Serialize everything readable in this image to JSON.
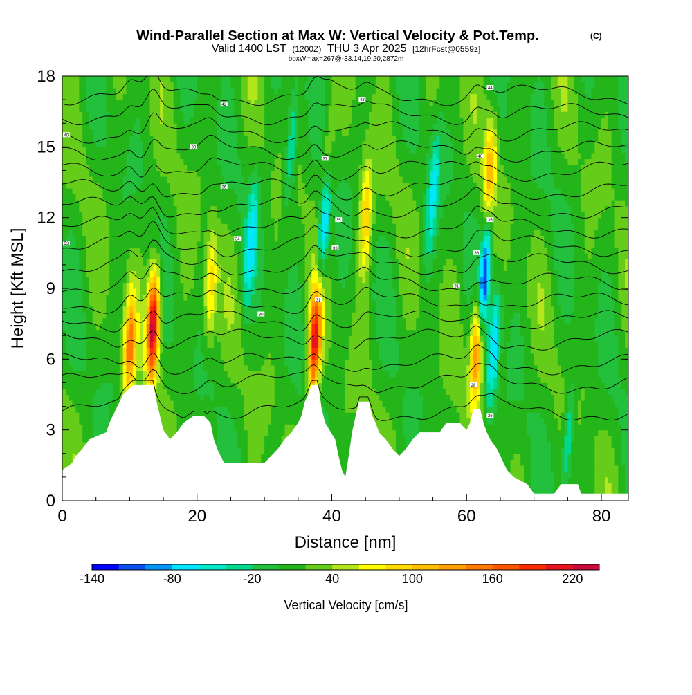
{
  "chart_data": {
    "type": "heatmap",
    "title": "Wind-Parallel Section at Max W: Vertical Velocity & Pot.Temp.",
    "title_mark": "(C)",
    "subtitle_parts": [
      "Valid 1400 LST",
      "(1200Z)",
      "THU 3 Apr 2025",
      "[12hrFcst@0559z]"
    ],
    "info_line": "boxWmax=267@-33.14,19.20,2872m",
    "xlabel": "Distance [nm]",
    "ylabel": "Height [Kft MSL]",
    "xlim": [
      0,
      84
    ],
    "ylim": [
      0,
      18
    ],
    "x_ticks": [
      0,
      20,
      40,
      60,
      80
    ],
    "x_tick_labels": [
      "0",
      "20",
      "40",
      "60",
      "80"
    ],
    "y_ticks": [
      0,
      3,
      6,
      9,
      12,
      15,
      18
    ],
    "y_tick_labels": [
      "0",
      "3",
      "6",
      "9",
      "12",
      "15",
      "18"
    ],
    "colorbar": {
      "label": "Vertical Velocity [cm/s]",
      "levels": [
        -140,
        -120,
        -100,
        -80,
        -60,
        -40,
        -20,
        0,
        20,
        40,
        60,
        80,
        100,
        120,
        140,
        160,
        180,
        200,
        220,
        240
      ],
      "colors": [
        "#0000ff",
        "#0a4ef0",
        "#0096f5",
        "#00e6ff",
        "#00e8c8",
        "#00d890",
        "#22c03c",
        "#23b51a",
        "#66cc1a",
        "#b4e61e",
        "#ffff00",
        "#ffdc00",
        "#ffbe00",
        "#ffa000",
        "#ff7800",
        "#ff5500",
        "#ff2d00",
        "#e6141e",
        "#c80a3c"
      ],
      "tick_values": [
        -140,
        -80,
        -20,
        40,
        100,
        160,
        220
      ],
      "tick_labels": [
        "-140",
        "-80",
        "-20",
        "40",
        "100",
        "160",
        "220"
      ]
    },
    "background_w": 12,
    "updrafts": [
      {
        "x": 10.0,
        "y": 6.5,
        "peak": 130
      },
      {
        "x": 13.5,
        "y": 7.5,
        "peak": 225
      },
      {
        "x": 37.5,
        "y": 6.8,
        "peak": 200
      },
      {
        "x": 61.5,
        "y": 6.5,
        "peak": 150
      },
      {
        "x": 22.0,
        "y": 9.0,
        "peak": 80
      },
      {
        "x": 39.5,
        "y": 14.0,
        "peak": 70
      },
      {
        "x": 45.0,
        "y": 12.0,
        "peak": 90
      },
      {
        "x": 63.5,
        "y": 14.0,
        "peak": 100
      }
    ],
    "downdrafts": [
      {
        "x": 39.0,
        "y": 12.0,
        "peak": -120
      },
      {
        "x": 62.7,
        "y": 9.5,
        "peak": -130
      },
      {
        "x": 64.0,
        "y": 6.5,
        "peak": -90
      },
      {
        "x": 28.0,
        "y": 11.0,
        "peak": -70
      },
      {
        "x": 55.0,
        "y": 13.0,
        "peak": -70
      },
      {
        "x": 34.0,
        "y": 15.0,
        "peak": -60
      },
      {
        "x": 75.0,
        "y": 2.5,
        "peak": -60
      }
    ],
    "theta_isentropes_kft": [
      3.8,
      5.0,
      5.8,
      6.8,
      7.6,
      8.4,
      9.2,
      10.0,
      10.8,
      11.6,
      12.4,
      13.2,
      14.0,
      14.8,
      15.6,
      16.4,
      17.2
    ],
    "theta_labels": [
      {
        "x": 0.6,
        "y": 15.5,
        "text": "40"
      },
      {
        "x": 0.6,
        "y": 10.9,
        "text": "33"
      },
      {
        "x": 19.5,
        "y": 15.0,
        "text": "38"
      },
      {
        "x": 24.0,
        "y": 16.8,
        "text": "42"
      },
      {
        "x": 24.0,
        "y": 13.3,
        "text": "36"
      },
      {
        "x": 26.0,
        "y": 11.1,
        "text": "34"
      },
      {
        "x": 29.5,
        "y": 7.9,
        "text": "30"
      },
      {
        "x": 39.0,
        "y": 14.5,
        "text": "37"
      },
      {
        "x": 41.0,
        "y": 11.9,
        "text": "35"
      },
      {
        "x": 40.5,
        "y": 10.7,
        "text": "33"
      },
      {
        "x": 38.0,
        "y": 8.5,
        "text": "31"
      },
      {
        "x": 44.5,
        "y": 17.0,
        "text": "43"
      },
      {
        "x": 58.5,
        "y": 9.1,
        "text": "31"
      },
      {
        "x": 62.0,
        "y": 14.6,
        "text": "40"
      },
      {
        "x": 63.5,
        "y": 11.9,
        "text": "35"
      },
      {
        "x": 61.5,
        "y": 10.5,
        "text": "33"
      },
      {
        "x": 61.0,
        "y": 4.9,
        "text": "28"
      },
      {
        "x": 63.5,
        "y": 3.6,
        "text": "26"
      },
      {
        "x": 63.5,
        "y": 17.5,
        "text": "44"
      }
    ],
    "terrain_kft": [
      [
        0,
        1.3
      ],
      [
        1.5,
        1.6
      ],
      [
        2.0,
        1.9
      ],
      [
        3.0,
        2.2
      ],
      [
        4.0,
        2.6
      ],
      [
        6.5,
        2.9
      ],
      [
        7.0,
        3.3
      ],
      [
        7.5,
        3.6
      ],
      [
        8.0,
        3.9
      ],
      [
        8.5,
        4.2
      ],
      [
        9.0,
        4.5
      ],
      [
        10.5,
        4.9
      ],
      [
        13.5,
        4.9
      ],
      [
        14.0,
        4.2
      ],
      [
        14.5,
        3.6
      ],
      [
        15.0,
        3.0
      ],
      [
        16.0,
        2.6
      ],
      [
        17.0,
        2.9
      ],
      [
        18.0,
        3.3
      ],
      [
        19.5,
        3.6
      ],
      [
        21.0,
        3.6
      ],
      [
        22.0,
        3.3
      ],
      [
        22.5,
        2.6
      ],
      [
        23.0,
        2.2
      ],
      [
        23.5,
        1.9
      ],
      [
        24.0,
        1.6
      ],
      [
        30.0,
        1.6
      ],
      [
        31.0,
        1.9
      ],
      [
        32.0,
        2.2
      ],
      [
        33.0,
        2.6
      ],
      [
        34.0,
        2.9
      ],
      [
        35.0,
        3.3
      ],
      [
        35.5,
        3.6
      ],
      [
        36.0,
        4.2
      ],
      [
        36.5,
        4.5
      ],
      [
        37.0,
        4.9
      ],
      [
        38.0,
        4.9
      ],
      [
        38.5,
        3.9
      ],
      [
        39.0,
        3.3
      ],
      [
        40.5,
        2.6
      ],
      [
        41.0,
        1.9
      ],
      [
        41.5,
        1.3
      ],
      [
        42.0,
        1.0
      ],
      [
        42.5,
        1.9
      ],
      [
        43.0,
        2.9
      ],
      [
        44.0,
        4.2
      ],
      [
        45.5,
        4.2
      ],
      [
        46.0,
        3.6
      ],
      [
        46.5,
        3.3
      ],
      [
        47.0,
        2.9
      ],
      [
        48.0,
        2.6
      ],
      [
        49.0,
        2.2
      ],
      [
        50.0,
        1.9
      ],
      [
        51.0,
        2.2
      ],
      [
        52.0,
        2.6
      ],
      [
        53.0,
        2.9
      ],
      [
        56.0,
        2.9
      ],
      [
        57.0,
        3.3
      ],
      [
        59.0,
        3.3
      ],
      [
        60.0,
        3.0
      ],
      [
        60.5,
        3.3
      ],
      [
        61.0,
        3.9
      ],
      [
        62.0,
        3.9
      ],
      [
        62.5,
        3.3
      ],
      [
        63.0,
        2.9
      ],
      [
        63.5,
        2.6
      ],
      [
        64.5,
        2.2
      ],
      [
        65.5,
        1.6
      ],
      [
        66.0,
        1.3
      ],
      [
        67.0,
        1.0
      ],
      [
        69.0,
        0.7
      ],
      [
        70.0,
        0.3
      ],
      [
        73.0,
        0.3
      ],
      [
        74.0,
        0.7
      ],
      [
        76.5,
        0.7
      ],
      [
        77.0,
        0.3
      ],
      [
        84.0,
        0.3
      ]
    ]
  }
}
